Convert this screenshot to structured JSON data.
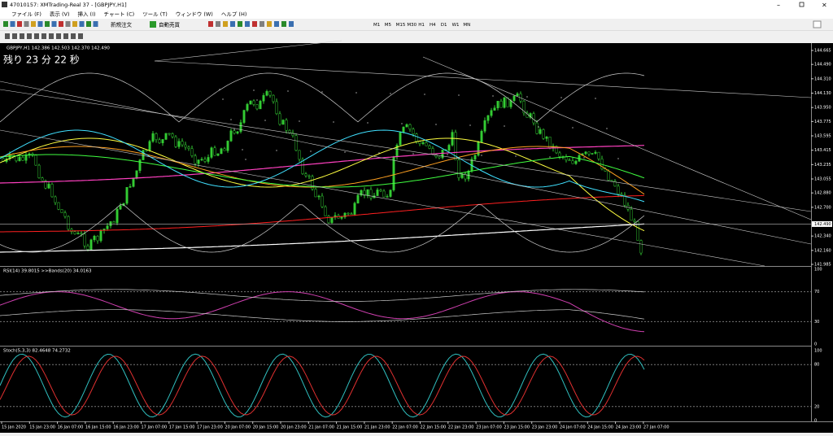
{
  "window": {
    "title": "47010157: XMTrading-Real 37 - [GBPJPY,H1]"
  },
  "menu": [
    "ファイル (F)",
    "表示 (V)",
    "挿入 (I)",
    "チャート (C)",
    "ツール (T)",
    "ウィンドウ (W)",
    "ヘルプ (H)"
  ],
  "toolbar": {
    "new_order": "新規注文",
    "auto_trading": "自動売買",
    "timeframes": [
      "M1",
      "M5",
      "M15",
      "M30",
      "H1",
      "H4",
      "D1",
      "W1",
      "MN"
    ]
  },
  "main_chart": {
    "header": "GBPJPY,H1 142.386 142.503 142.370 142.490",
    "countdown": "残り 23 分 22 秒",
    "price_labels": [
      "144.665",
      "144.490",
      "144.310",
      "144.130",
      "143.950",
      "143.775",
      "143.595",
      "143.415",
      "143.235",
      "143.055",
      "142.880",
      "142.700",
      "142.340",
      "142.160",
      "141.985"
    ],
    "current_price": "142.490"
  },
  "rsi": {
    "header": "RSI(14) 39.8015 >>Bands(20) 34.0163",
    "levels": [
      "100",
      "70",
      "30",
      "0"
    ]
  },
  "stoch": {
    "header": "Stoch(5,3,3) 82.4648 74.2732",
    "levels": [
      "100",
      "80",
      "20",
      "0"
    ]
  },
  "time_labels": [
    "15 Jan 2020",
    "15 Jan 23:00",
    "16 Jan 07:00",
    "16 Jan 15:00",
    "16 Jan 23:00",
    "17 Jan 07:00",
    "17 Jan 15:00",
    "17 Jan 23:00",
    "20 Jan 07:00",
    "20 Jan 15:00",
    "20 Jan 23:00",
    "21 Jan 07:00",
    "21 Jan 15:00",
    "21 Jan 23:00",
    "22 Jan 07:00",
    "22 Jan 15:00",
    "22 Jan 23:00",
    "23 Jan 07:00",
    "23 Jan 15:00",
    "23 Jan 23:00",
    "24 Jan 07:00",
    "24 Jan 15:00",
    "24 Jan 23:00",
    "27 Jan 07:00"
  ]
}
